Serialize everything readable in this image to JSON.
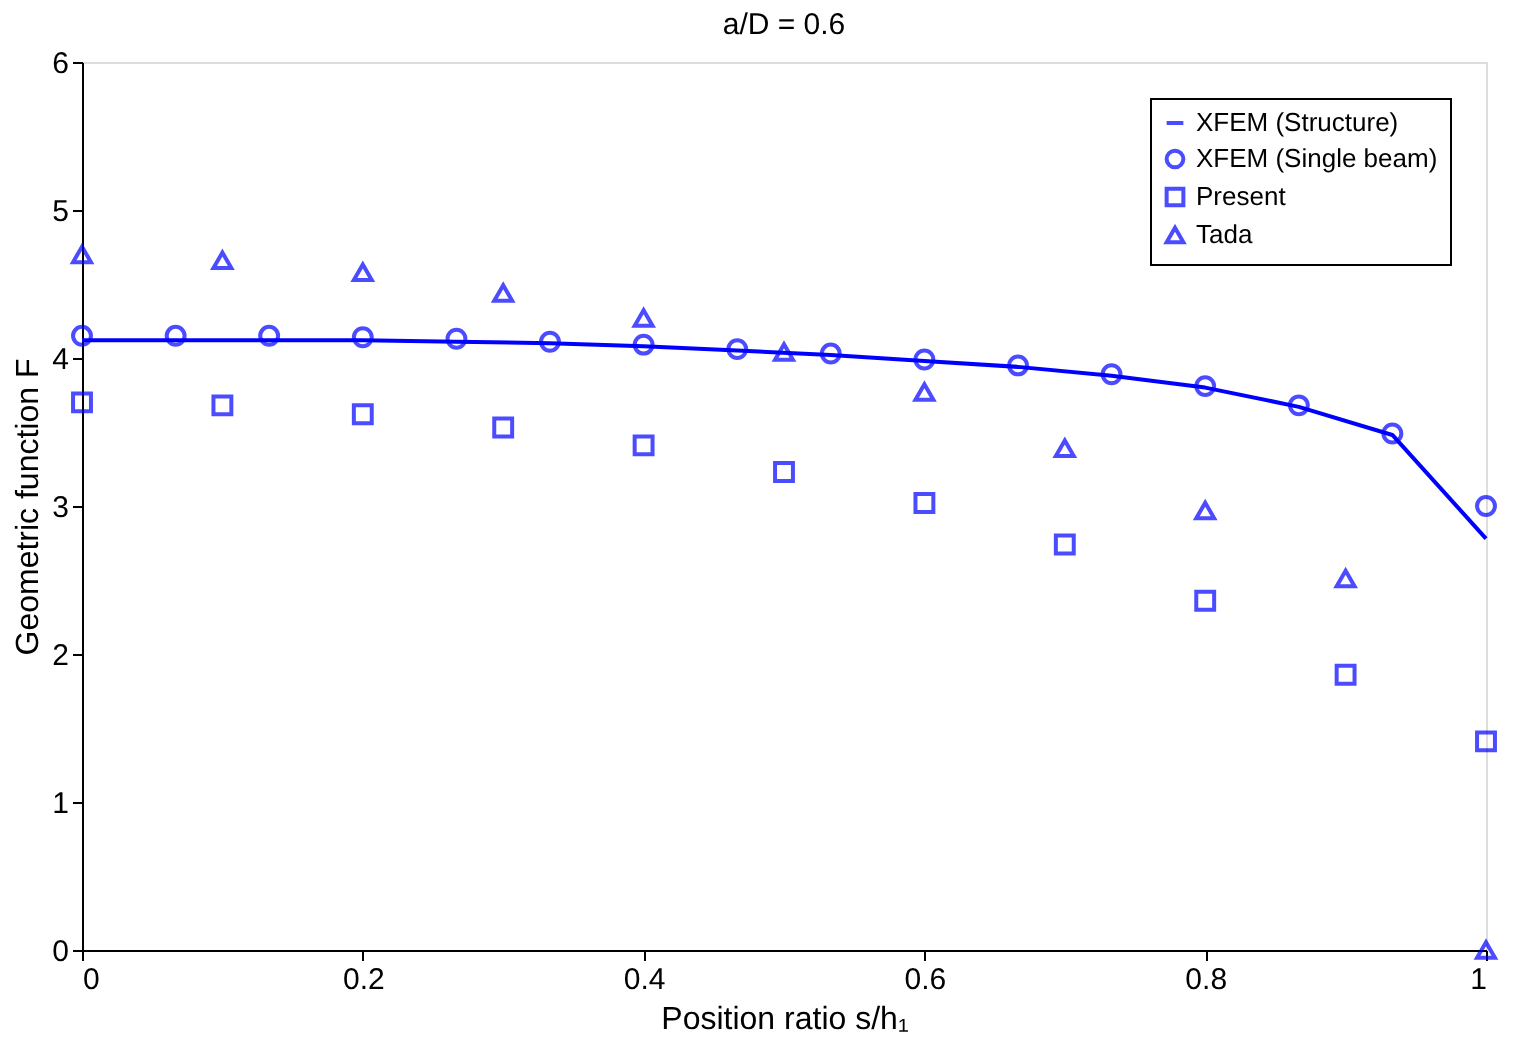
{
  "chart_data": {
    "type": "scatter",
    "title": "a/D = 0.6",
    "xlabel": "Position ratio s/h₁",
    "ylabel": "Geometric function F",
    "xlim": [
      0,
      1
    ],
    "ylim": [
      0,
      6
    ],
    "xticks": [
      0,
      0.2,
      0.4,
      0.6,
      0.8,
      1
    ],
    "yticks": [
      0,
      1,
      2,
      3,
      4,
      5,
      6
    ],
    "grid": false,
    "legend": "top right",
    "series": [
      {
        "name": "XFEM (Structure)",
        "type": "line",
        "marker": "none",
        "line_style": "solid",
        "color": "#0000ff",
        "x": [
          0,
          0.0667,
          0.1333,
          0.2,
          0.2667,
          0.3333,
          0.4,
          0.4667,
          0.5333,
          0.6,
          0.6667,
          0.7333,
          0.8,
          0.8667,
          0.9333,
          1
        ],
        "values": [
          4.12,
          4.12,
          4.12,
          4.12,
          4.11,
          4.1,
          4.08,
          4.05,
          4.02,
          3.98,
          3.94,
          3.88,
          3.8,
          3.67,
          3.48,
          2.78
        ]
      },
      {
        "name": "XFEM (Single beam)",
        "marker": "circle",
        "color": "#0000ff",
        "x": [
          0,
          0.0667,
          0.1333,
          0.2,
          0.2667,
          0.3333,
          0.4,
          0.4667,
          0.5333,
          0.6,
          0.6667,
          0.7333,
          0.8,
          0.8667,
          0.9333,
          1
        ],
        "values": [
          4.15,
          4.15,
          4.15,
          4.14,
          4.13,
          4.11,
          4.09,
          4.06,
          4.03,
          3.99,
          3.95,
          3.89,
          3.81,
          3.68,
          3.49,
          3.0
        ]
      },
      {
        "name": "Present",
        "marker": "square",
        "color": "#0000ff",
        "x": [
          0,
          0.1,
          0.2,
          0.3,
          0.4,
          0.5,
          0.6,
          0.7,
          0.8,
          0.9,
          1
        ],
        "values": [
          3.7,
          3.68,
          3.62,
          3.53,
          3.41,
          3.23,
          3.02,
          2.74,
          2.36,
          1.86,
          1.41
        ]
      },
      {
        "name": "Tada",
        "marker": "triangle",
        "color": "#0000ff",
        "x": [
          0,
          0.1,
          0.2,
          0.3,
          0.4,
          0.5,
          0.6,
          0.7,
          0.8,
          0.9,
          1
        ],
        "values": [
          4.7,
          4.66,
          4.58,
          4.44,
          4.27,
          4.04,
          3.77,
          3.39,
          2.97,
          2.51,
          0.0
        ]
      }
    ]
  }
}
